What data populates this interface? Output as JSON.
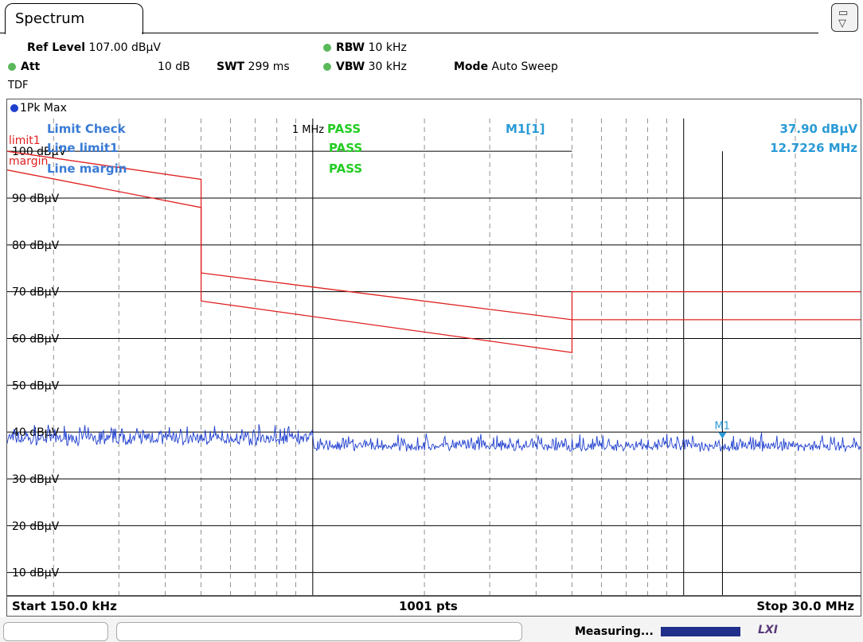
{
  "tab": {
    "label": "Spectrum"
  },
  "settings": {
    "ref_level_label": "Ref Level",
    "ref_level_value": "107.00 dBµV",
    "att_label": "Att",
    "att_value": "10 dB",
    "swt_label": "SWT",
    "swt_value": "299 ms",
    "rbw_label": "RBW",
    "rbw_value": "10 kHz",
    "vbw_label": "VBW",
    "vbw_value": "30 kHz",
    "mode_label": "Mode",
    "mode_value": "Auto Sweep",
    "tdf_label": "TDF"
  },
  "trace": {
    "label": "1Pk Max",
    "color": "#1f3fcf"
  },
  "limit_check": {
    "title": "Limit Check",
    "rows": [
      {
        "short": "limit1",
        "name": "Line limit1",
        "status": "PASS"
      },
      {
        "short": "margin",
        "name": "Line margin",
        "status": "PASS"
      }
    ],
    "overall_status": "PASS",
    "pass_color": "#22cc22",
    "label_color": "#3a7bd5",
    "limit_color": "#e02020"
  },
  "marker": {
    "label": "M1[1]",
    "tag": "M1",
    "level": "37.90 dBµV",
    "freq": "12.7226 MHz",
    "freq_mhz": 12.7226,
    "level_dbuv": 37.9,
    "color": "#2a9ad6"
  },
  "annotations": {
    "one_mhz": "1 MHz"
  },
  "footer": {
    "start": "Start 150.0 kHz",
    "points": "1001 pts",
    "stop": "Stop 30.0 MHz"
  },
  "status": {
    "measuring": "Measuring...",
    "lxi": "LXI"
  },
  "chart_data": {
    "type": "line",
    "x_scale": "log",
    "x_range_mhz": [
      0.15,
      30.0
    ],
    "ylim": [
      5,
      107
    ],
    "yticks": [
      100,
      90,
      80,
      70,
      60,
      50,
      40,
      30,
      20,
      10
    ],
    "ytick_labels": [
      "100 dBµV",
      "90 dBµV",
      "80 dBµV",
      "70 dBµV",
      "60 dBµV",
      "50 dBµV",
      "40 dBµV",
      "30 dBµV",
      "20 dBµV",
      "10 dBµV"
    ],
    "reference_line_dbuv": 100,
    "grid": true,
    "series": [
      {
        "name": "limit1",
        "color": "#e02020",
        "points": [
          [
            0.15,
            100
          ],
          [
            0.5,
            94
          ],
          [
            0.5,
            74
          ],
          [
            5.0,
            64
          ],
          [
            5.0,
            64
          ],
          [
            30.0,
            64
          ]
        ]
      },
      {
        "name": "margin",
        "color": "#e02020",
        "points": [
          [
            0.15,
            96
          ],
          [
            0.5,
            88
          ],
          [
            0.5,
            68
          ],
          [
            5.0,
            57
          ],
          [
            5.0,
            70
          ],
          [
            30.0,
            70
          ]
        ]
      }
    ],
    "trace_level_dbuv": [
      35,
      41
    ],
    "trace_level_after_1mhz_dbuv": [
      34,
      39
    ]
  }
}
